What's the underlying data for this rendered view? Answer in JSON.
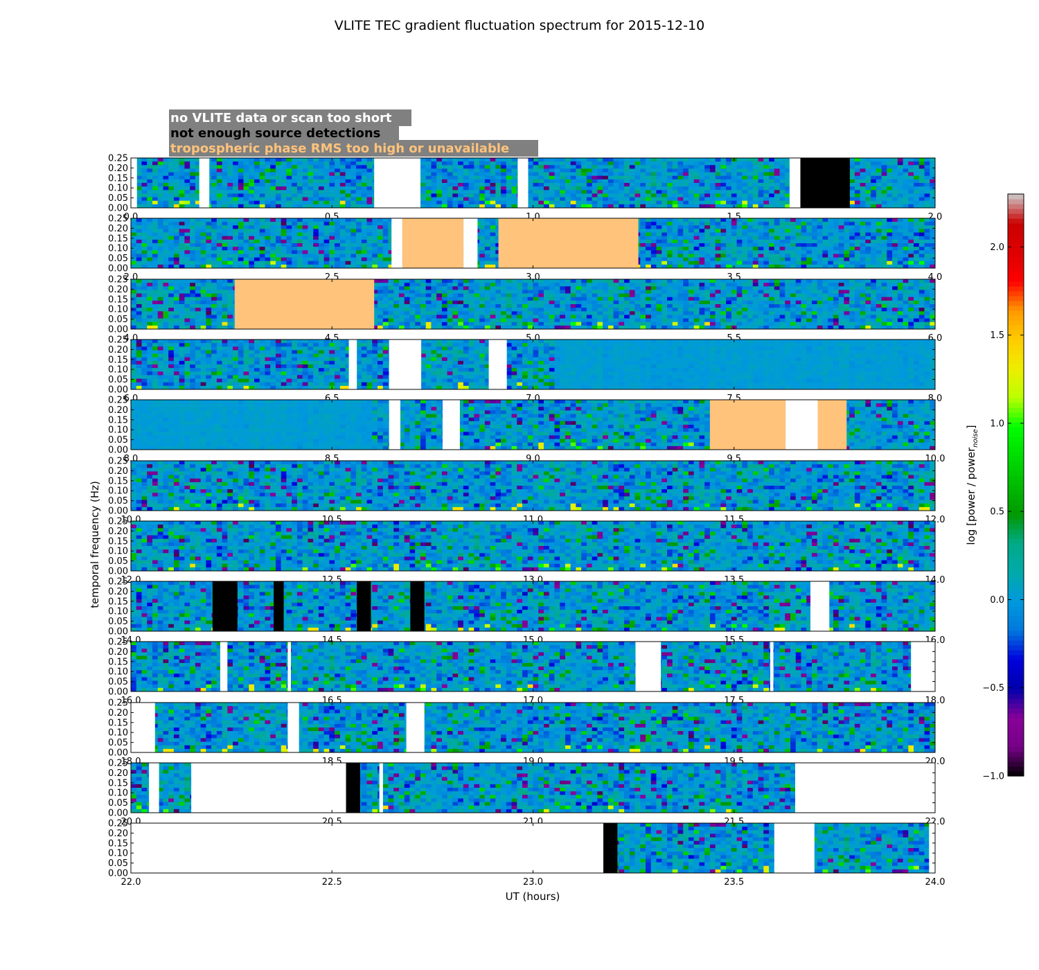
{
  "chart_data": {
    "type": "heatmap",
    "title": "VLITE TEC gradient fluctuation spectrum for 2015-12-10",
    "xlabel": "UT (hours)",
    "ylabel": "temporal frequency (Hz)",
    "colorbar_label": "log [power / power",
    "colorbar_label_sub": "noise",
    "colorbar_label_end": "]",
    "colormap": "nipy_spectral",
    "colorbar_range": [
      -1.0,
      2.3
    ],
    "colorbar_ticks": [
      "−1.0",
      "−0.5",
      "0.0",
      "0.5",
      "1.0",
      "1.5",
      "2.0"
    ],
    "colorbar_tick_values": [
      -1.0,
      -0.5,
      0.0,
      0.5,
      1.0,
      1.5,
      2.0
    ],
    "ylim": [
      0,
      0.25
    ],
    "y_ticks": [
      "0.00",
      "0.05",
      "0.10",
      "0.15",
      "0.20",
      "0.25"
    ],
    "grid": false,
    "legend": {
      "placement": "top-left",
      "entries": [
        {
          "text": "no VLITE data or scan too short",
          "box": "#808080",
          "color": "#ffffff",
          "flag": "no_data"
        },
        {
          "text": "not enough source detections",
          "box": "#808080",
          "color": "#000000",
          "flag": "few_detections"
        },
        {
          "text": "tropospheric phase RMS too high or unavailable",
          "box": "#808080",
          "color": "#ffc37b",
          "flag": "tropo_rms"
        }
      ]
    },
    "flag_colors": {
      "no_data": "#ffffff",
      "few_detections": "#000000",
      "tropo_rms": "#ffc37b"
    },
    "rows": [
      {
        "xlim": [
          0.0,
          2.0
        ],
        "x_ticks": [
          "0.0",
          "0.5",
          "1.0",
          "1.5",
          "2.0"
        ],
        "style": "noisy",
        "flags": [
          {
            "type": "no_data",
            "start": 0.0,
            "end": 0.015
          },
          {
            "type": "no_data",
            "start": 0.17,
            "end": 0.195
          },
          {
            "type": "no_data",
            "start": 0.605,
            "end": 0.72
          },
          {
            "type": "no_data",
            "start": 0.962,
            "end": 0.988
          },
          {
            "type": "no_data",
            "start": 1.638,
            "end": 1.665
          },
          {
            "type": "few_detections",
            "start": 1.665,
            "end": 1.788
          }
        ]
      },
      {
        "xlim": [
          2.0,
          4.0
        ],
        "x_ticks": [
          "2.0",
          "2.5",
          "3.0",
          "3.5",
          "4.0"
        ],
        "style": "noisy",
        "flags": [
          {
            "type": "no_data",
            "start": 2.648,
            "end": 2.675
          },
          {
            "type": "tropo_rms",
            "start": 2.675,
            "end": 2.827
          },
          {
            "type": "no_data",
            "start": 2.827,
            "end": 2.862
          },
          {
            "type": "tropo_rms",
            "start": 2.914,
            "end": 3.262
          }
        ]
      },
      {
        "xlim": [
          4.0,
          6.0
        ],
        "x_ticks": [
          "4.0",
          "4.5",
          "5.0",
          "5.5",
          "6.0"
        ],
        "style": "noisy",
        "flags": [
          {
            "type": "tropo_rms",
            "start": 4.258,
            "end": 4.605
          }
        ]
      },
      {
        "xlim": [
          6.0,
          8.0
        ],
        "x_ticks": [
          "6.0",
          "6.5",
          "7.0",
          "7.5",
          "8.0"
        ],
        "style": "noisy",
        "smooth_after": 7.05,
        "flags": [
          {
            "type": "no_data",
            "start": 6.542,
            "end": 6.562
          },
          {
            "type": "no_data",
            "start": 6.642,
            "end": 6.722
          },
          {
            "type": "no_data",
            "start": 6.89,
            "end": 6.935
          }
        ]
      },
      {
        "xlim": [
          8.0,
          10.0
        ],
        "x_ticks": [
          "8.0",
          "8.5",
          "9.0",
          "9.5",
          "10.0"
        ],
        "style": "noisy",
        "smooth_before": 8.6,
        "flags": [
          {
            "type": "no_data",
            "start": 8.642,
            "end": 8.67
          },
          {
            "type": "no_data",
            "start": 8.775,
            "end": 8.818
          },
          {
            "type": "tropo_rms",
            "start": 9.44,
            "end": 9.628
          },
          {
            "type": "no_data",
            "start": 9.628,
            "end": 9.708
          },
          {
            "type": "tropo_rms",
            "start": 9.708,
            "end": 9.78
          }
        ]
      },
      {
        "xlim": [
          10.0,
          12.0
        ],
        "x_ticks": [
          "10.0",
          "10.5",
          "11.0",
          "11.5",
          "12.0"
        ],
        "style": "noisy",
        "flags": []
      },
      {
        "xlim": [
          12.0,
          14.0
        ],
        "x_ticks": [
          "12.0",
          "12.5",
          "13.0",
          "13.5",
          "14.0"
        ],
        "style": "noisy",
        "flags": []
      },
      {
        "xlim": [
          14.0,
          16.0
        ],
        "x_ticks": [
          "14.0",
          "14.5",
          "15.0",
          "15.5",
          "16.0"
        ],
        "style": "noisy",
        "flags": [
          {
            "type": "few_detections",
            "start": 14.203,
            "end": 14.265
          },
          {
            "type": "few_detections",
            "start": 14.355,
            "end": 14.38
          },
          {
            "type": "few_detections",
            "start": 14.562,
            "end": 14.597
          },
          {
            "type": "few_detections",
            "start": 14.695,
            "end": 14.73
          },
          {
            "type": "no_data",
            "start": 15.69,
            "end": 15.737
          }
        ]
      },
      {
        "xlim": [
          16.0,
          18.0
        ],
        "x_ticks": [
          "16.0",
          "16.5",
          "17.0",
          "17.5",
          "18.0"
        ],
        "style": "noisy",
        "flags": [
          {
            "type": "no_data",
            "start": 16.222,
            "end": 16.24
          },
          {
            "type": "no_data",
            "start": 16.39,
            "end": 16.398
          },
          {
            "type": "no_data",
            "start": 17.255,
            "end": 17.318
          },
          {
            "type": "no_data",
            "start": 17.59,
            "end": 17.598
          },
          {
            "type": "no_data",
            "start": 17.94,
            "end": 18.0
          }
        ]
      },
      {
        "xlim": [
          18.0,
          20.0
        ],
        "x_ticks": [
          "18.0",
          "18.5",
          "19.0",
          "19.5",
          "20.0"
        ],
        "style": "noisy",
        "flags": [
          {
            "type": "no_data",
            "start": 18.0,
            "end": 18.06
          },
          {
            "type": "no_data",
            "start": 18.39,
            "end": 18.418
          },
          {
            "type": "no_data",
            "start": 18.685,
            "end": 18.73
          }
        ]
      },
      {
        "xlim": [
          20.0,
          22.0
        ],
        "x_ticks": [
          "20.0",
          "20.5",
          "21.0",
          "21.5",
          "22.0"
        ],
        "style": "noisy",
        "flags": [
          {
            "type": "no_data",
            "start": 20.045,
            "end": 20.07
          },
          {
            "type": "no_data",
            "start": 20.15,
            "end": 20.535
          },
          {
            "type": "few_detections",
            "start": 20.535,
            "end": 20.57
          },
          {
            "type": "no_data",
            "start": 20.618,
            "end": 20.627
          },
          {
            "type": "no_data",
            "start": 21.652,
            "end": 22.0
          }
        ]
      },
      {
        "xlim": [
          22.0,
          24.0
        ],
        "x_ticks": [
          "22.0",
          "22.5",
          "23.0",
          "23.5",
          "24.0"
        ],
        "style": "noisy",
        "flags": [
          {
            "type": "no_data",
            "start": 22.0,
            "end": 23.175
          },
          {
            "type": "few_detections",
            "start": 23.175,
            "end": 23.21
          },
          {
            "type": "no_data",
            "start": 23.6,
            "end": 23.7
          },
          {
            "type": "no_data",
            "start": 23.985,
            "end": 24.0
          }
        ]
      }
    ]
  }
}
